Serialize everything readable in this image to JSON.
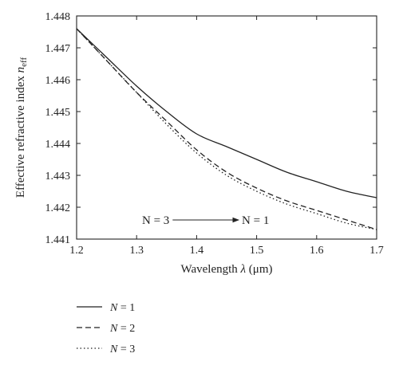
{
  "chart_data": {
    "type": "line",
    "xlabel_prefix": "Wavelength ",
    "xlabel_symbol": "λ",
    "xlabel_unit": " (μm)",
    "ylabel_prefix": "Effective refractive index ",
    "ylabel_symbol": "n",
    "ylabel_sub": "eff",
    "xlim": [
      1.2,
      1.7
    ],
    "ylim": [
      1.441,
      1.448
    ],
    "x_ticks": [
      "1.2",
      "1.3",
      "1.4",
      "1.5",
      "1.6",
      "1.7"
    ],
    "y_ticks": [
      "1.441",
      "1.442",
      "1.443",
      "1.444",
      "1.445",
      "1.446",
      "1.447",
      "1.448"
    ],
    "annotation": {
      "left": "N = 3",
      "right": "N = 1",
      "x_start": 1.36,
      "x_end": 1.47,
      "y": 1.4416
    },
    "series": [
      {
        "name": "N = 1",
        "style": "solid",
        "x": [
          1.2,
          1.25,
          1.3,
          1.35,
          1.4,
          1.45,
          1.5,
          1.55,
          1.6,
          1.65,
          1.7
        ],
        "y": [
          1.4476,
          1.4467,
          1.4458,
          1.445,
          1.4443,
          1.4439,
          1.4435,
          1.4431,
          1.4428,
          1.4425,
          1.4423
        ]
      },
      {
        "name": "N = 2",
        "style": "dashed",
        "x": [
          1.2,
          1.25,
          1.3,
          1.35,
          1.4,
          1.45,
          1.5,
          1.55,
          1.6,
          1.65,
          1.7
        ],
        "y": [
          1.4476,
          1.4466,
          1.4456,
          1.4447,
          1.4438,
          1.4431,
          1.4426,
          1.4422,
          1.4419,
          1.4416,
          1.4413
        ]
      },
      {
        "name": "N = 3",
        "style": "dotted",
        "x": [
          1.2,
          1.25,
          1.3,
          1.35,
          1.4,
          1.45,
          1.5,
          1.55,
          1.6,
          1.65,
          1.7
        ],
        "y": [
          1.4476,
          1.4466,
          1.4456,
          1.4446,
          1.4437,
          1.443,
          1.4425,
          1.4421,
          1.4418,
          1.4415,
          1.4413
        ]
      }
    ],
    "legend": [
      {
        "name_prefix": "N",
        "name_suffix": " = 1",
        "style": "solid"
      },
      {
        "name_prefix": "N",
        "name_suffix": " = 2",
        "style": "dashed"
      },
      {
        "name_prefix": "N",
        "name_suffix": " = 3",
        "style": "dotted"
      }
    ],
    "grid": false,
    "legend_placement": "bottom-left",
    "line_color": "#222222"
  }
}
